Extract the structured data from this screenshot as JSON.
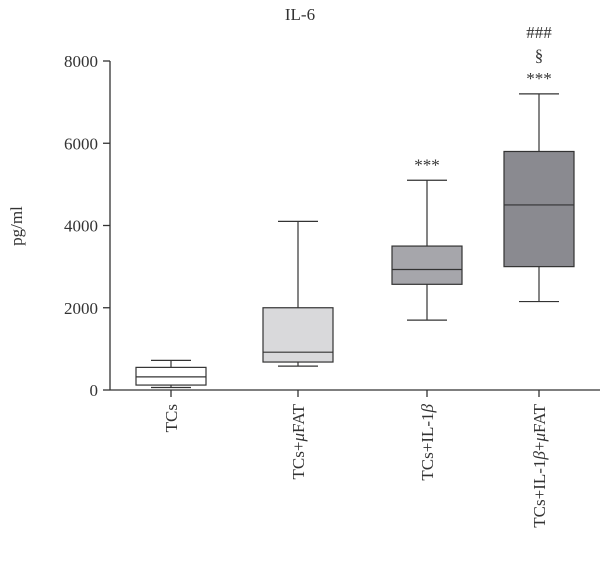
{
  "chart_data": {
    "type": "box",
    "title": "IL-6",
    "xlabel": "",
    "ylabel": "pg/ml",
    "ylim": [
      0,
      8000
    ],
    "yticks": [
      0,
      2000,
      4000,
      6000,
      8000
    ],
    "grid": false,
    "legend": "none",
    "categories": [
      {
        "parts": [
          {
            "text": "TCs",
            "italic": false
          }
        ]
      },
      {
        "parts": [
          {
            "text": "TCs+",
            "italic": false
          },
          {
            "text": "μ",
            "italic": true
          },
          {
            "text": "FAT",
            "italic": false
          }
        ]
      },
      {
        "parts": [
          {
            "text": "TCs+IL-1",
            "italic": false
          },
          {
            "text": "β",
            "italic": true
          }
        ]
      },
      {
        "parts": [
          {
            "text": "TCs+IL-1",
            "italic": false
          },
          {
            "text": "β",
            "italic": true
          },
          {
            "text": "+",
            "italic": false
          },
          {
            "text": "μ",
            "italic": true
          },
          {
            "text": "FAT",
            "italic": false
          }
        ]
      }
    ],
    "boxes": [
      {
        "min": 60,
        "q1": 120,
        "median": 320,
        "q3": 550,
        "max": 720,
        "fill": "#ffffff"
      },
      {
        "min": 580,
        "q1": 680,
        "median": 920,
        "q3": 2000,
        "max": 4100,
        "fill": "#d9d9db"
      },
      {
        "min": 1700,
        "q1": 2570,
        "median": 2930,
        "q3": 3500,
        "max": 5100,
        "fill": "#a6a6ab"
      },
      {
        "min": 2150,
        "q1": 3000,
        "median": 4500,
        "q3": 5800,
        "max": 7200,
        "fill": "#8a8a90"
      }
    ],
    "annotations": [
      {
        "category_index": 2,
        "lines": [
          "***"
        ]
      },
      {
        "category_index": 3,
        "lines": [
          "###",
          "§",
          "***"
        ]
      }
    ]
  }
}
